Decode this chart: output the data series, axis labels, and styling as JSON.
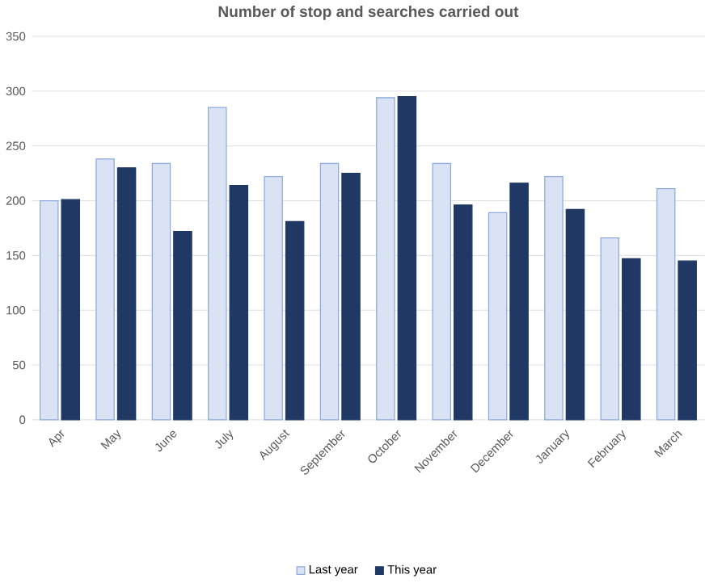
{
  "chart_data": {
    "type": "bar",
    "title": "Number of stop and searches carried out",
    "categories": [
      "Apr",
      "May",
      "June",
      "July",
      "August",
      "September",
      "October",
      "November",
      "December",
      "January",
      "February",
      "March"
    ],
    "series": [
      {
        "name": "Last year",
        "color": "#dae3f3",
        "values": [
          200,
          238,
          234,
          285,
          222,
          234,
          294,
          234,
          189,
          222,
          166,
          211
        ]
      },
      {
        "name": "This year",
        "color": "#1f3864",
        "values": [
          201,
          230,
          172,
          214,
          181,
          225,
          295,
          196,
          216,
          192,
          147,
          145
        ]
      }
    ],
    "ylim": [
      0,
      350
    ],
    "yticks": [
      0,
      50,
      100,
      150,
      200,
      250,
      300,
      350
    ],
    "grid": "y",
    "legend": "bottom"
  }
}
